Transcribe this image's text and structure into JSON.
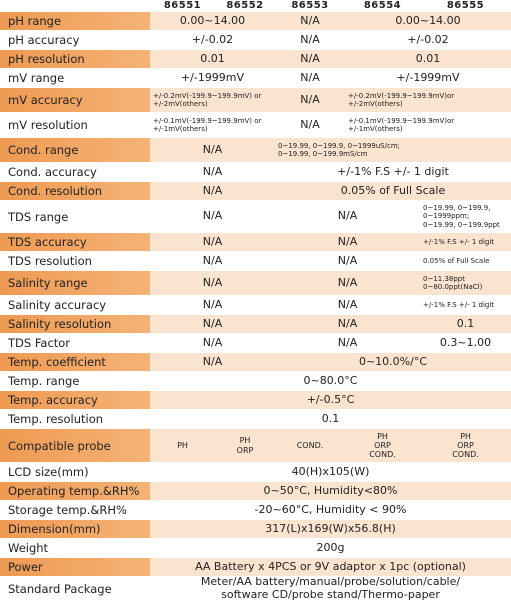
{
  "header": {
    "models": [
      "86551",
      "86552",
      "86553",
      "86554",
      "86555"
    ]
  },
  "table": {
    "rows": [
      {
        "label": "pH range",
        "highlight": true,
        "cells": [
          {
            "text": "0.00~14.00",
            "span": 2
          },
          {
            "text": "N/A",
            "span": 1
          },
          {
            "text": "0.00~14.00",
            "span": 2
          }
        ]
      },
      {
        "label": "pH accuracy",
        "highlight": false,
        "cells": [
          {
            "text": "+/-0.02",
            "span": 2
          },
          {
            "text": "N/A",
            "span": 1
          },
          {
            "text": "+/-0.02",
            "span": 2
          }
        ]
      },
      {
        "label": "pH resolution",
        "highlight": true,
        "cells": [
          {
            "text": "0.01",
            "span": 2
          },
          {
            "text": "N/A",
            "span": 1
          },
          {
            "text": "0.01",
            "span": 2
          }
        ]
      },
      {
        "label": "mV range",
        "highlight": false,
        "cells": [
          {
            "text": "+/-1999mV",
            "span": 2
          },
          {
            "text": "N/A",
            "span": 1
          },
          {
            "text": "+/-1999mV",
            "span": 2
          }
        ]
      },
      {
        "label": "mV accuracy",
        "highlight": true,
        "cells": [
          {
            "lines": [
              "+/-0.2mV(-199.9~199.9mV) or",
              "+/-2mV(others)"
            ],
            "span": 2
          },
          {
            "text": "N/A",
            "span": 1
          },
          {
            "lines": [
              "+/-0.2mV(-199.9~199.9mV)or",
              "+/-2mV(others)"
            ],
            "span": 2
          }
        ]
      },
      {
        "label": "mV resolution",
        "highlight": false,
        "cells": [
          {
            "lines": [
              "+/-0.1mV(-199.9~199.9mV) or",
              "+/-1mV(others)"
            ],
            "span": 2
          },
          {
            "text": "N/A",
            "span": 1
          },
          {
            "lines": [
              "+/-0.1mV(-199.9~199.9mV)or",
              "+/-1mV(others)"
            ],
            "span": 2
          }
        ]
      },
      {
        "label": "Cond. range",
        "highlight": true,
        "cells": [
          {
            "text": "N/A",
            "span": 2
          },
          {
            "lines": [
              "0~19.99, 0~199.9, 0~1999uS/cm;",
              "0~19.99, 0~199.9mS/cm"
            ],
            "span": 3
          }
        ]
      },
      {
        "label": "Cond. accuracy",
        "highlight": false,
        "cells": [
          {
            "text": "N/A",
            "span": 2
          },
          {
            "text": "+/-1% F.S +/- 1 digit",
            "span": 3
          }
        ]
      },
      {
        "label": "Cond. resolution",
        "highlight": true,
        "cells": [
          {
            "text": "N/A",
            "span": 2
          },
          {
            "text": "0.05% of Full Scale",
            "span": 3
          }
        ]
      },
      {
        "label": "TDS range",
        "highlight": false,
        "cells": [
          {
            "text": "N/A",
            "span": 2
          },
          {
            "text": "N/A",
            "span": 2
          },
          {
            "lines": [
              "0~19.99, 0~199.9,",
              "0~1999ppm;",
              "0~19.99, 0~199.9ppt"
            ],
            "span": 1
          }
        ]
      },
      {
        "label": "TDS accuracy",
        "highlight": true,
        "cells": [
          {
            "text": "N/A",
            "span": 2
          },
          {
            "text": "N/A",
            "span": 2
          },
          {
            "text": "+/-1% F.S +/- 1 digit",
            "span": 1
          }
        ]
      },
      {
        "label": "TDS resolution",
        "highlight": false,
        "cells": [
          {
            "text": "N/A",
            "span": 2
          },
          {
            "text": "N/A",
            "span": 2
          },
          {
            "text": "0.05% of Full Scale",
            "span": 1
          }
        ]
      },
      {
        "label": "Salinity range",
        "highlight": true,
        "cells": [
          {
            "text": "N/A",
            "span": 2
          },
          {
            "text": "N/A",
            "span": 2
          },
          {
            "lines": [
              "0~11.38ppt",
              "0~80.0ppt(NaCl)"
            ],
            "span": 1
          }
        ]
      },
      {
        "label": "Salinity accuracy",
        "highlight": false,
        "cells": [
          {
            "text": "N/A",
            "span": 2
          },
          {
            "text": "N/A",
            "span": 2
          },
          {
            "text": "+/-1% F.S +/- 1 digit",
            "span": 1
          }
        ]
      },
      {
        "label": "Salinity resolution",
        "highlight": true,
        "cells": [
          {
            "text": "N/A",
            "span": 2
          },
          {
            "text": "N/A",
            "span": 2
          },
          {
            "text": "0.1",
            "span": 1
          }
        ]
      },
      {
        "label": "TDS Factor",
        "highlight": false,
        "cells": [
          {
            "text": "N/A",
            "span": 2
          },
          {
            "text": "N/A",
            "span": 2
          },
          {
            "text": "0.3~1.00",
            "span": 1
          }
        ]
      },
      {
        "label": "Temp. coefficient",
        "highlight": true,
        "cells": [
          {
            "text": "N/A",
            "span": 2
          },
          {
            "text": "0~10.0%/°C",
            "span": 3
          }
        ]
      },
      {
        "label": "Temp. range",
        "highlight": false,
        "cells": [
          {
            "text": "0~80.0°C",
            "span": 5
          }
        ]
      },
      {
        "label": "Temp. accuracy",
        "highlight": true,
        "cells": [
          {
            "text": "+/-0.5°C",
            "span": 5
          }
        ]
      },
      {
        "label": "Temp. resolution",
        "highlight": false,
        "cells": [
          {
            "text": "0.1",
            "span": 5
          }
        ]
      },
      {
        "label": "Compatible probe",
        "highlight": true,
        "cells": [
          {
            "text": "PH",
            "span": 1
          },
          {
            "lines": [
              "PH",
              "ORP"
            ],
            "span": 1
          },
          {
            "text": "COND.",
            "span": 1
          },
          {
            "lines": [
              "PH",
              "ORP",
              "COND."
            ],
            "span": 1
          },
          {
            "lines": [
              "PH",
              "ORP",
              "COND."
            ],
            "span": 1
          }
        ]
      },
      {
        "label": "LCD size(mm)",
        "highlight": false,
        "cells": [
          {
            "text": "40(H)x105(W)",
            "span": 5
          }
        ]
      },
      {
        "label": "Operating temp.&RH%",
        "highlight": true,
        "cells": [
          {
            "text": "0~50°C,  Humidity<80%",
            "span": 5
          }
        ]
      },
      {
        "label": "Storage temp.&RH%",
        "highlight": false,
        "cells": [
          {
            "text": "-20~60°C,  Humidity < 90%",
            "span": 5
          }
        ]
      },
      {
        "label": "Dimension(mm)",
        "highlight": true,
        "cells": [
          {
            "text": "317(L)x169(W)x56.8(H)",
            "span": 5
          }
        ]
      },
      {
        "label": "Weight",
        "highlight": false,
        "cells": [
          {
            "text": "200g",
            "span": 5
          }
        ]
      },
      {
        "label": "Power",
        "highlight": true,
        "cells": [
          {
            "text": "AA Battery x 4PCS or 9V adaptor x 1pc (optional)",
            "span": 5
          }
        ]
      },
      {
        "label": "Standard Package",
        "highlight": false,
        "cells": [
          {
            "lines": [
              "Meter/AA battery/manual/probe/solution/cable/",
              "software CD/probe stand/Thermo-paper"
            ],
            "span": 5
          }
        ]
      }
    ]
  }
}
